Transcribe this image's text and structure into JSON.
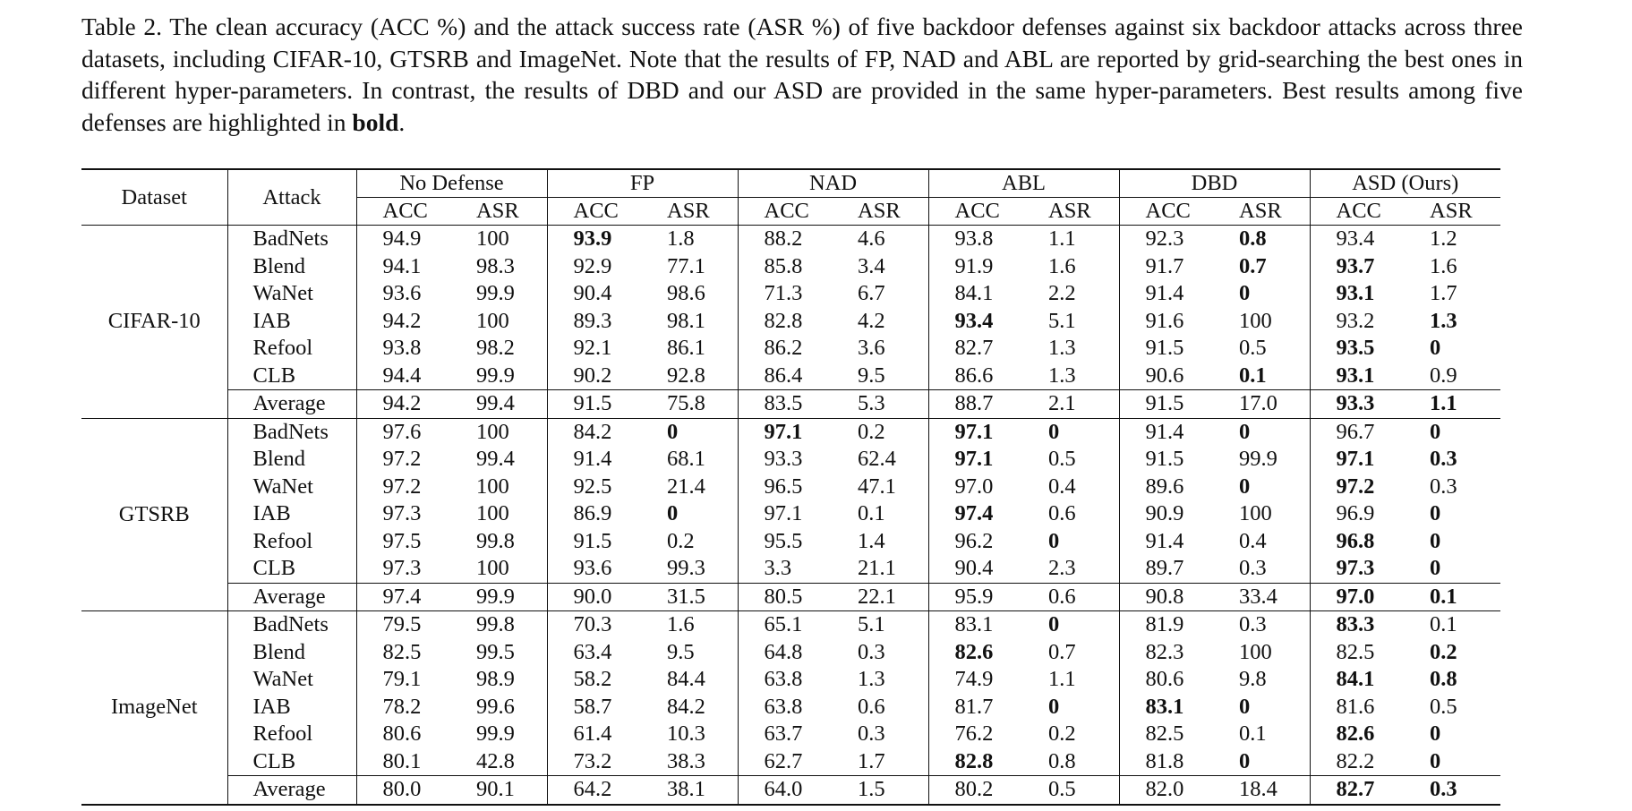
{
  "caption": {
    "text": "Table 2. The clean accuracy (ACC %) and the attack success rate (ASR %) of five backdoor defenses against six backdoor attacks across three datasets, including CIFAR-10, GTSRB and ImageNet. Note that the results of FP, NAD and ABL are reported by grid-searching the best ones in different hyper-parameters. In contrast, the results of DBD and our ASD are provided in the same hyper-parameters. Best results among five defenses are highlighted in",
    "bold_word": "bold",
    "end": "."
  },
  "table": {
    "row_headers": [
      "Dataset",
      "Attack"
    ],
    "groups": [
      "No Defense",
      "FP",
      "NAD",
      "ABL",
      "DBD",
      "ASD (Ours)"
    ],
    "metrics": [
      "ACC",
      "ASR"
    ],
    "datasets": [
      {
        "name": "CIFAR-10",
        "rows": [
          {
            "attack": "BadNets",
            "values": [
              "94.9",
              "100",
              "93.9",
              "1.8",
              "88.2",
              "4.6",
              "93.8",
              "1.1",
              "92.3",
              "0.8",
              "93.4",
              "1.2"
            ],
            "bold": [
              2,
              9
            ]
          },
          {
            "attack": "Blend",
            "values": [
              "94.1",
              "98.3",
              "92.9",
              "77.1",
              "85.8",
              "3.4",
              "91.9",
              "1.6",
              "91.7",
              "0.7",
              "93.7",
              "1.6"
            ],
            "bold": [
              9,
              10
            ]
          },
          {
            "attack": "WaNet",
            "values": [
              "93.6",
              "99.9",
              "90.4",
              "98.6",
              "71.3",
              "6.7",
              "84.1",
              "2.2",
              "91.4",
              "0",
              "93.1",
              "1.7"
            ],
            "bold": [
              9,
              10
            ]
          },
          {
            "attack": "IAB",
            "values": [
              "94.2",
              "100",
              "89.3",
              "98.1",
              "82.8",
              "4.2",
              "93.4",
              "5.1",
              "91.6",
              "100",
              "93.2",
              "1.3"
            ],
            "bold": [
              6,
              11
            ]
          },
          {
            "attack": "Refool",
            "values": [
              "93.8",
              "98.2",
              "92.1",
              "86.1",
              "86.2",
              "3.6",
              "82.7",
              "1.3",
              "91.5",
              "0.5",
              "93.5",
              "0"
            ],
            "bold": [
              10,
              11
            ]
          },
          {
            "attack": "CLB",
            "values": [
              "94.4",
              "99.9",
              "90.2",
              "92.8",
              "86.4",
              "9.5",
              "86.6",
              "1.3",
              "90.6",
              "0.1",
              "93.1",
              "0.9"
            ],
            "bold": [
              9,
              10
            ]
          },
          {
            "attack": "Average",
            "values": [
              "94.2",
              "99.4",
              "91.5",
              "75.8",
              "83.5",
              "5.3",
              "88.7",
              "2.1",
              "91.5",
              "17.0",
              "93.3",
              "1.1"
            ],
            "bold": [
              10,
              11
            ]
          }
        ]
      },
      {
        "name": "GTSRB",
        "rows": [
          {
            "attack": "BadNets",
            "values": [
              "97.6",
              "100",
              "84.2",
              "0",
              "97.1",
              "0.2",
              "97.1",
              "0",
              "91.4",
              "0",
              "96.7",
              "0"
            ],
            "bold": [
              3,
              4,
              6,
              7,
              9,
              11
            ]
          },
          {
            "attack": "Blend",
            "values": [
              "97.2",
              "99.4",
              "91.4",
              "68.1",
              "93.3",
              "62.4",
              "97.1",
              "0.5",
              "91.5",
              "99.9",
              "97.1",
              "0.3"
            ],
            "bold": [
              6,
              10,
              11
            ]
          },
          {
            "attack": "WaNet",
            "values": [
              "97.2",
              "100",
              "92.5",
              "21.4",
              "96.5",
              "47.1",
              "97.0",
              "0.4",
              "89.6",
              "0",
              "97.2",
              "0.3"
            ],
            "bold": [
              9,
              10
            ]
          },
          {
            "attack": "IAB",
            "values": [
              "97.3",
              "100",
              "86.9",
              "0",
              "97.1",
              "0.1",
              "97.4",
              "0.6",
              "90.9",
              "100",
              "96.9",
              "0"
            ],
            "bold": [
              3,
              6,
              11
            ]
          },
          {
            "attack": "Refool",
            "values": [
              "97.5",
              "99.8",
              "91.5",
              "0.2",
              "95.5",
              "1.4",
              "96.2",
              "0",
              "91.4",
              "0.4",
              "96.8",
              "0"
            ],
            "bold": [
              7,
              10,
              11
            ]
          },
          {
            "attack": "CLB",
            "values": [
              "97.3",
              "100",
              "93.6",
              "99.3",
              "3.3",
              "21.1",
              "90.4",
              "2.3",
              "89.7",
              "0.3",
              "97.3",
              "0"
            ],
            "bold": [
              10,
              11
            ]
          },
          {
            "attack": "Average",
            "values": [
              "97.4",
              "99.9",
              "90.0",
              "31.5",
              "80.5",
              "22.1",
              "95.9",
              "0.6",
              "90.8",
              "33.4",
              "97.0",
              "0.1"
            ],
            "bold": [
              10,
              11
            ]
          }
        ]
      },
      {
        "name": "ImageNet",
        "rows": [
          {
            "attack": "BadNets",
            "values": [
              "79.5",
              "99.8",
              "70.3",
              "1.6",
              "65.1",
              "5.1",
              "83.1",
              "0",
              "81.9",
              "0.3",
              "83.3",
              "0.1"
            ],
            "bold": [
              7,
              10
            ]
          },
          {
            "attack": "Blend",
            "values": [
              "82.5",
              "99.5",
              "63.4",
              "9.5",
              "64.8",
              "0.3",
              "82.6",
              "0.7",
              "82.3",
              "100",
              "82.5",
              "0.2"
            ],
            "bold": [
              6,
              11
            ]
          },
          {
            "attack": "WaNet",
            "values": [
              "79.1",
              "98.9",
              "58.2",
              "84.4",
              "63.8",
              "1.3",
              "74.9",
              "1.1",
              "80.6",
              "9.8",
              "84.1",
              "0.8"
            ],
            "bold": [
              10,
              11
            ]
          },
          {
            "attack": "IAB",
            "values": [
              "78.2",
              "99.6",
              "58.7",
              "84.2",
              "63.8",
              "0.6",
              "81.7",
              "0",
              "83.1",
              "0",
              "81.6",
              "0.5"
            ],
            "bold": [
              7,
              8,
              9
            ]
          },
          {
            "attack": "Refool",
            "values": [
              "80.6",
              "99.9",
              "61.4",
              "10.3",
              "63.7",
              "0.3",
              "76.2",
              "0.2",
              "82.5",
              "0.1",
              "82.6",
              "0"
            ],
            "bold": [
              10,
              11
            ]
          },
          {
            "attack": "CLB",
            "values": [
              "80.1",
              "42.8",
              "73.2",
              "38.3",
              "62.7",
              "1.7",
              "82.8",
              "0.8",
              "81.8",
              "0",
              "82.2",
              "0"
            ],
            "bold": [
              6,
              9,
              11
            ]
          },
          {
            "attack": "Average",
            "values": [
              "80.0",
              "90.1",
              "64.2",
              "38.1",
              "64.0",
              "1.5",
              "80.2",
              "0.5",
              "82.0",
              "18.4",
              "82.7",
              "0.3"
            ],
            "bold": [
              10,
              11
            ]
          }
        ]
      }
    ]
  }
}
